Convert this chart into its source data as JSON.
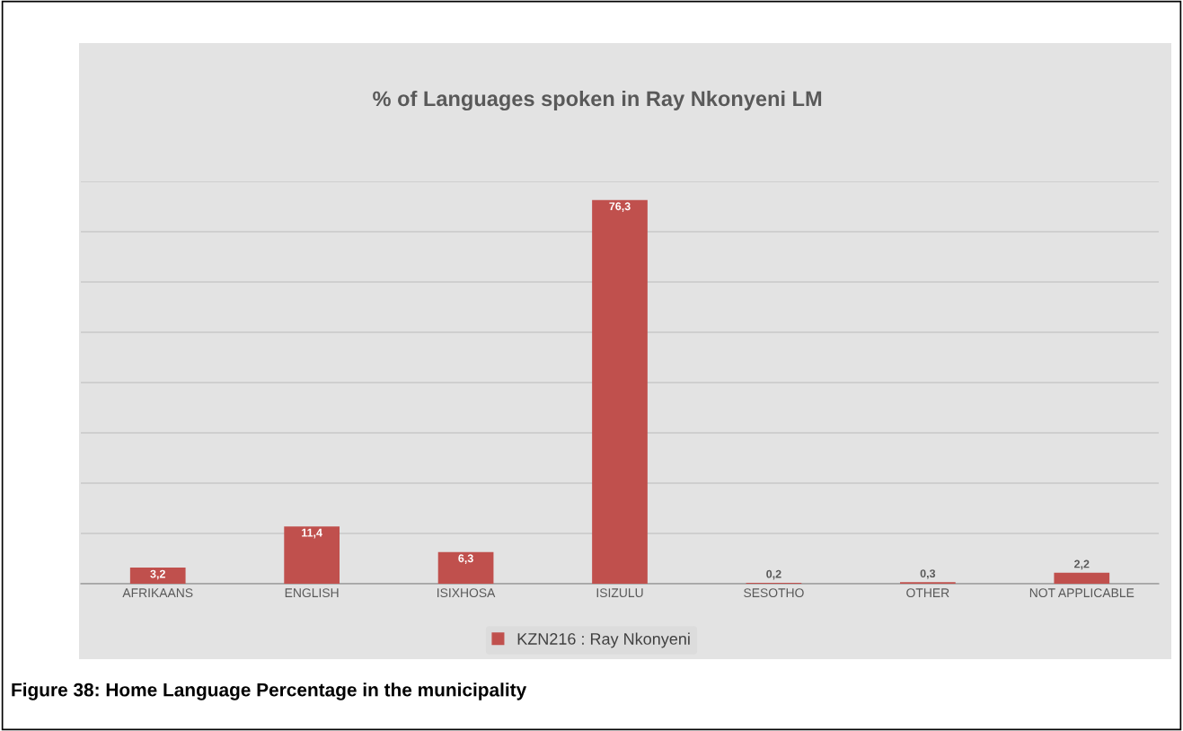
{
  "chart_data": {
    "type": "bar",
    "title": "% of Languages spoken in Ray Nkonyeni LM",
    "categories": [
      "AFRIKAANS",
      "ENGLISH",
      "ISIXHOSA",
      "ISIZULU",
      "SESOTHO",
      "OTHER",
      "NOT APPLICABLE"
    ],
    "series": [
      {
        "name": "KZN216 : Ray Nkonyeni",
        "color": "#c0504d",
        "values": [
          3.2,
          11.4,
          6.3,
          76.3,
          0.2,
          0.3,
          2.2
        ],
        "value_labels": [
          "3,2",
          "11,4",
          "6,3",
          "76,3",
          "0,2",
          "0,3",
          "2,2"
        ]
      }
    ],
    "ylim": [
      0,
      80
    ],
    "yticks": [
      {
        "value": 0,
        "label": null
      },
      {
        "value": 10,
        "label": null
      },
      {
        "value": 20,
        "label": null
      },
      {
        "value": 30,
        "label": null
      },
      {
        "value": 40,
        "label": null
      },
      {
        "value": 50,
        "label": null
      },
      {
        "value": 60,
        "label": null
      },
      {
        "value": 70,
        "label": null
      },
      {
        "value": 80,
        "label": null
      }
    ],
    "tick_labels": "x",
    "grid": "y",
    "legend": "bottom",
    "annotations": [
      "Figure 38: Home Language Percentage in the municipality"
    ]
  }
}
